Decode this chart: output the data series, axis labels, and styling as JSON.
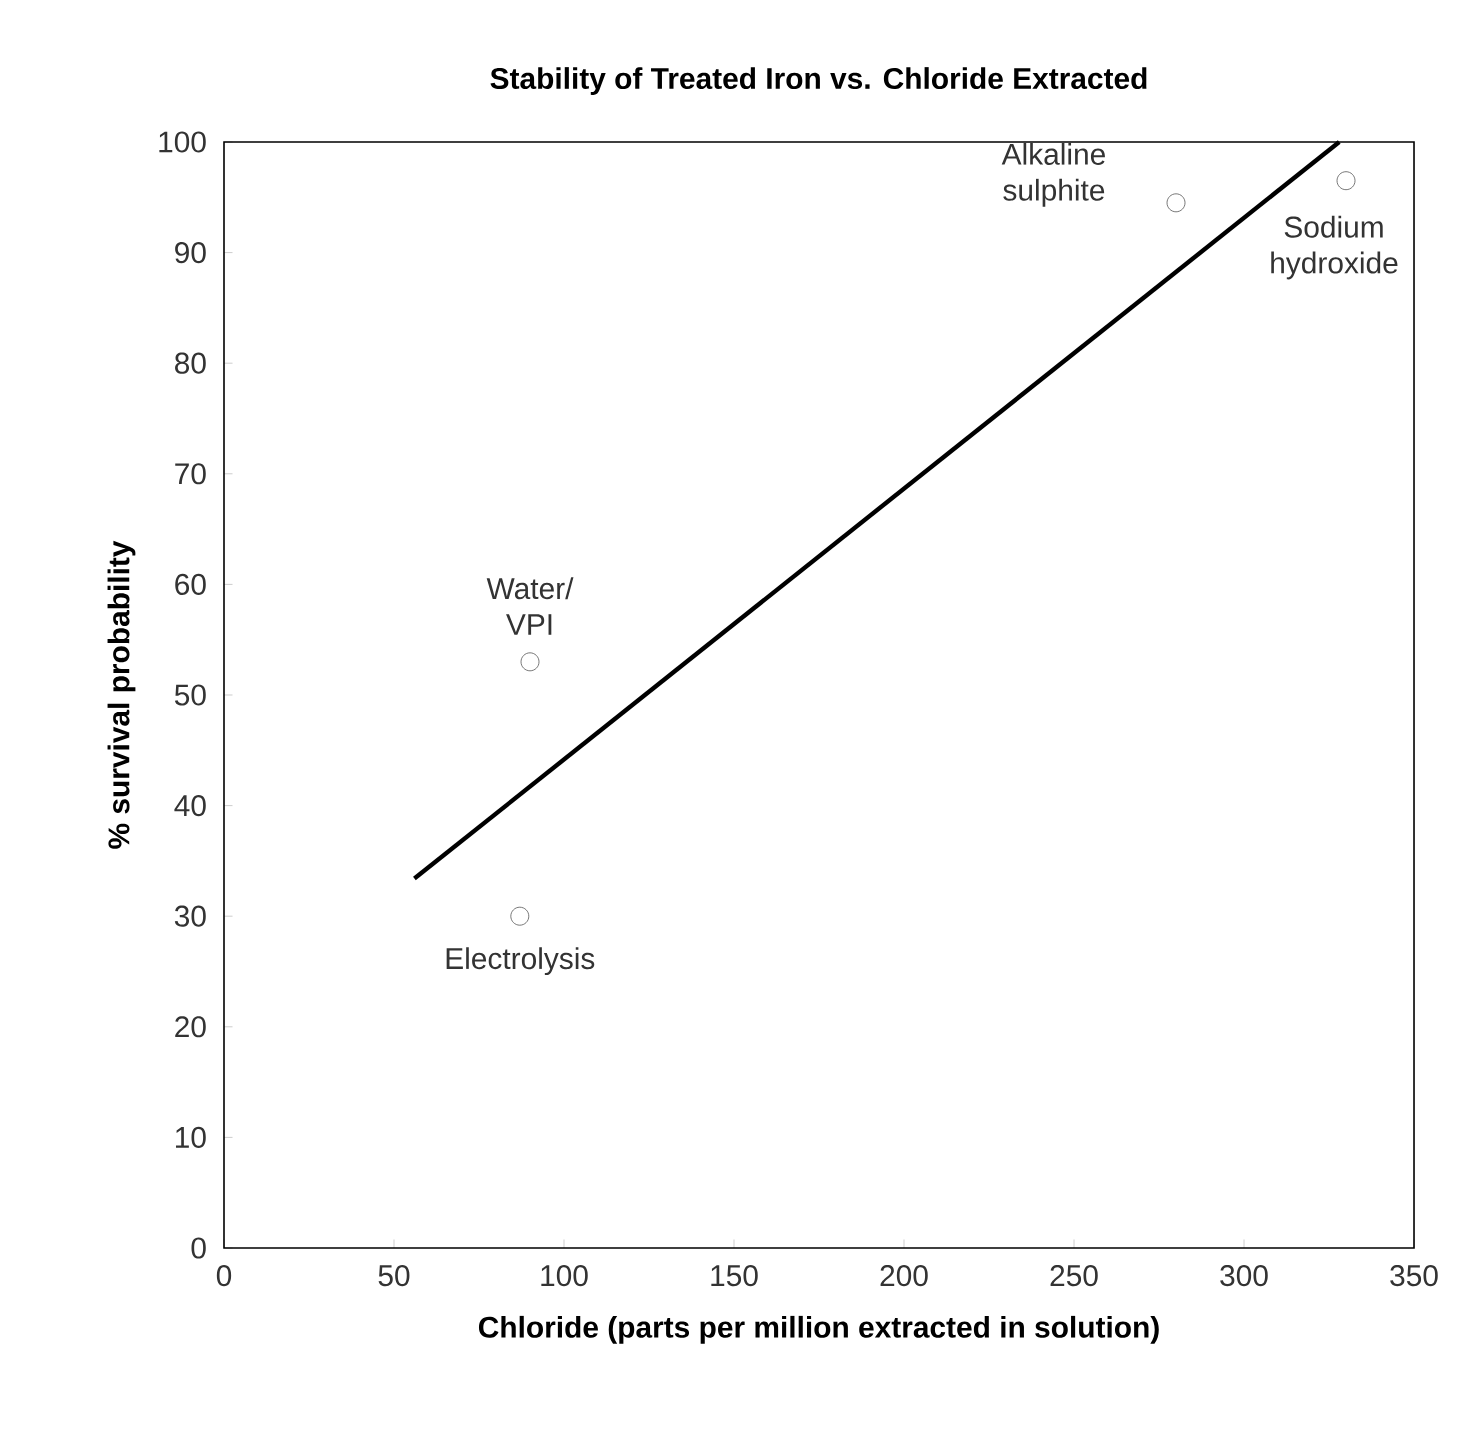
{
  "chart_data": {
    "type": "scatter",
    "title": "Stability of Treated Iron vs. Chloride Extracted",
    "xlabel": "Chloride (parts per million extracted in solution)",
    "ylabel": "% survival probability",
    "series": [
      {
        "color": "#555555",
        "marker": "circle",
        "x": [
          90,
          87,
          280,
          330
        ],
        "values": [
          53,
          30,
          94.5,
          96.5
        ]
      },
      {
        "type": "line",
        "color": "#000000",
        "marker": "none",
        "x": [
          56,
          328
        ],
        "values": [
          33.4,
          100
        ]
      }
    ],
    "annotations": [
      {
        "text": "Water/ VPI",
        "x": 90,
        "y": 53
      },
      {
        "text": "Electrolysis",
        "x": 87,
        "y": 30
      },
      {
        "text": "Alkaline sulphite",
        "x": 280,
        "y": 94.5
      },
      {
        "text": "Sodium hydroxide",
        "x": 330,
        "y": 96.5
      }
    ],
    "xlim": [
      0,
      350
    ],
    "ylim": [
      0,
      100
    ],
    "xticks": [
      0,
      50,
      100,
      150,
      200,
      250,
      300,
      350
    ],
    "yticks": [
      0,
      10,
      20,
      30,
      40,
      50,
      60,
      70,
      80,
      90,
      100
    ],
    "grid": false
  }
}
